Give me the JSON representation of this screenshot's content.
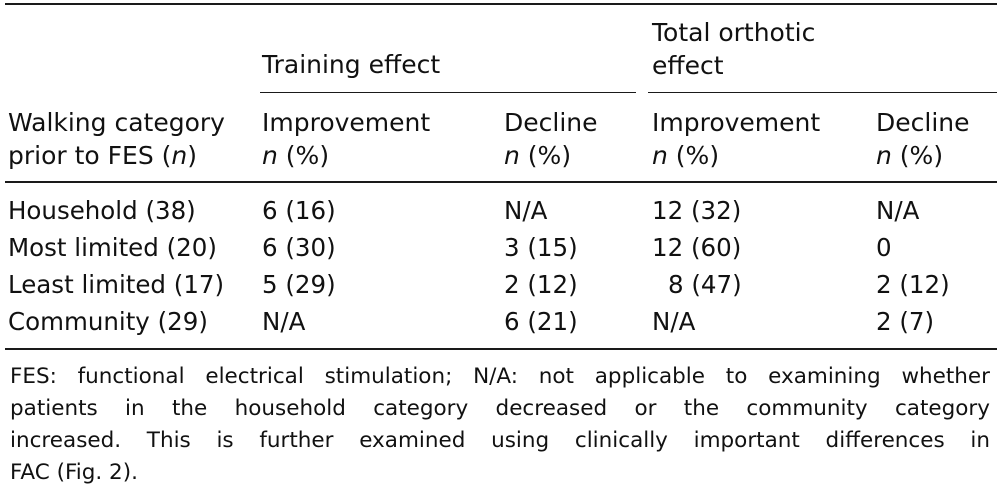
{
  "table": {
    "group_headers": {
      "training": "Training effect",
      "total_line1": "Total orthotic",
      "total_line2": "effect"
    },
    "col_headers": {
      "walk_line1": "Walking category",
      "walk_line2_pre": "prior to FES (",
      "walk_line2_n": "n",
      "walk_line2_post": ")",
      "improvement": "Improvement",
      "decline": "Decline",
      "n_italic": "n",
      "pct": " (%)"
    },
    "rows": [
      {
        "category": "Household (38)",
        "train_imp": "6 (16)",
        "train_dec": "N/A",
        "total_imp": "12 (32)",
        "total_dec": "N/A"
      },
      {
        "category": "Most limited (20)",
        "train_imp": "6 (30)",
        "train_dec": "3 (15)",
        "total_imp": "12 (60)",
        "total_dec": "0"
      },
      {
        "category": "Least limited (17)",
        "train_imp": "5 (29)",
        "train_dec": "2 (12)",
        "total_imp": "8 (47)",
        "total_dec": "2 (12)"
      },
      {
        "category": "Community (29)",
        "train_imp": "N/A",
        "train_dec": "6 (21)",
        "total_imp": "N/A",
        "total_dec": "2 (7)"
      }
    ]
  },
  "footnote": {
    "line1": "FES: functional electrical stimulation; N/A: not applicable to examining whether",
    "line2": "patients in the household category decreased or the community category",
    "line3": "increased. This is further examined using clinically important differences in",
    "line4": "FAC (Fig. 2)."
  }
}
